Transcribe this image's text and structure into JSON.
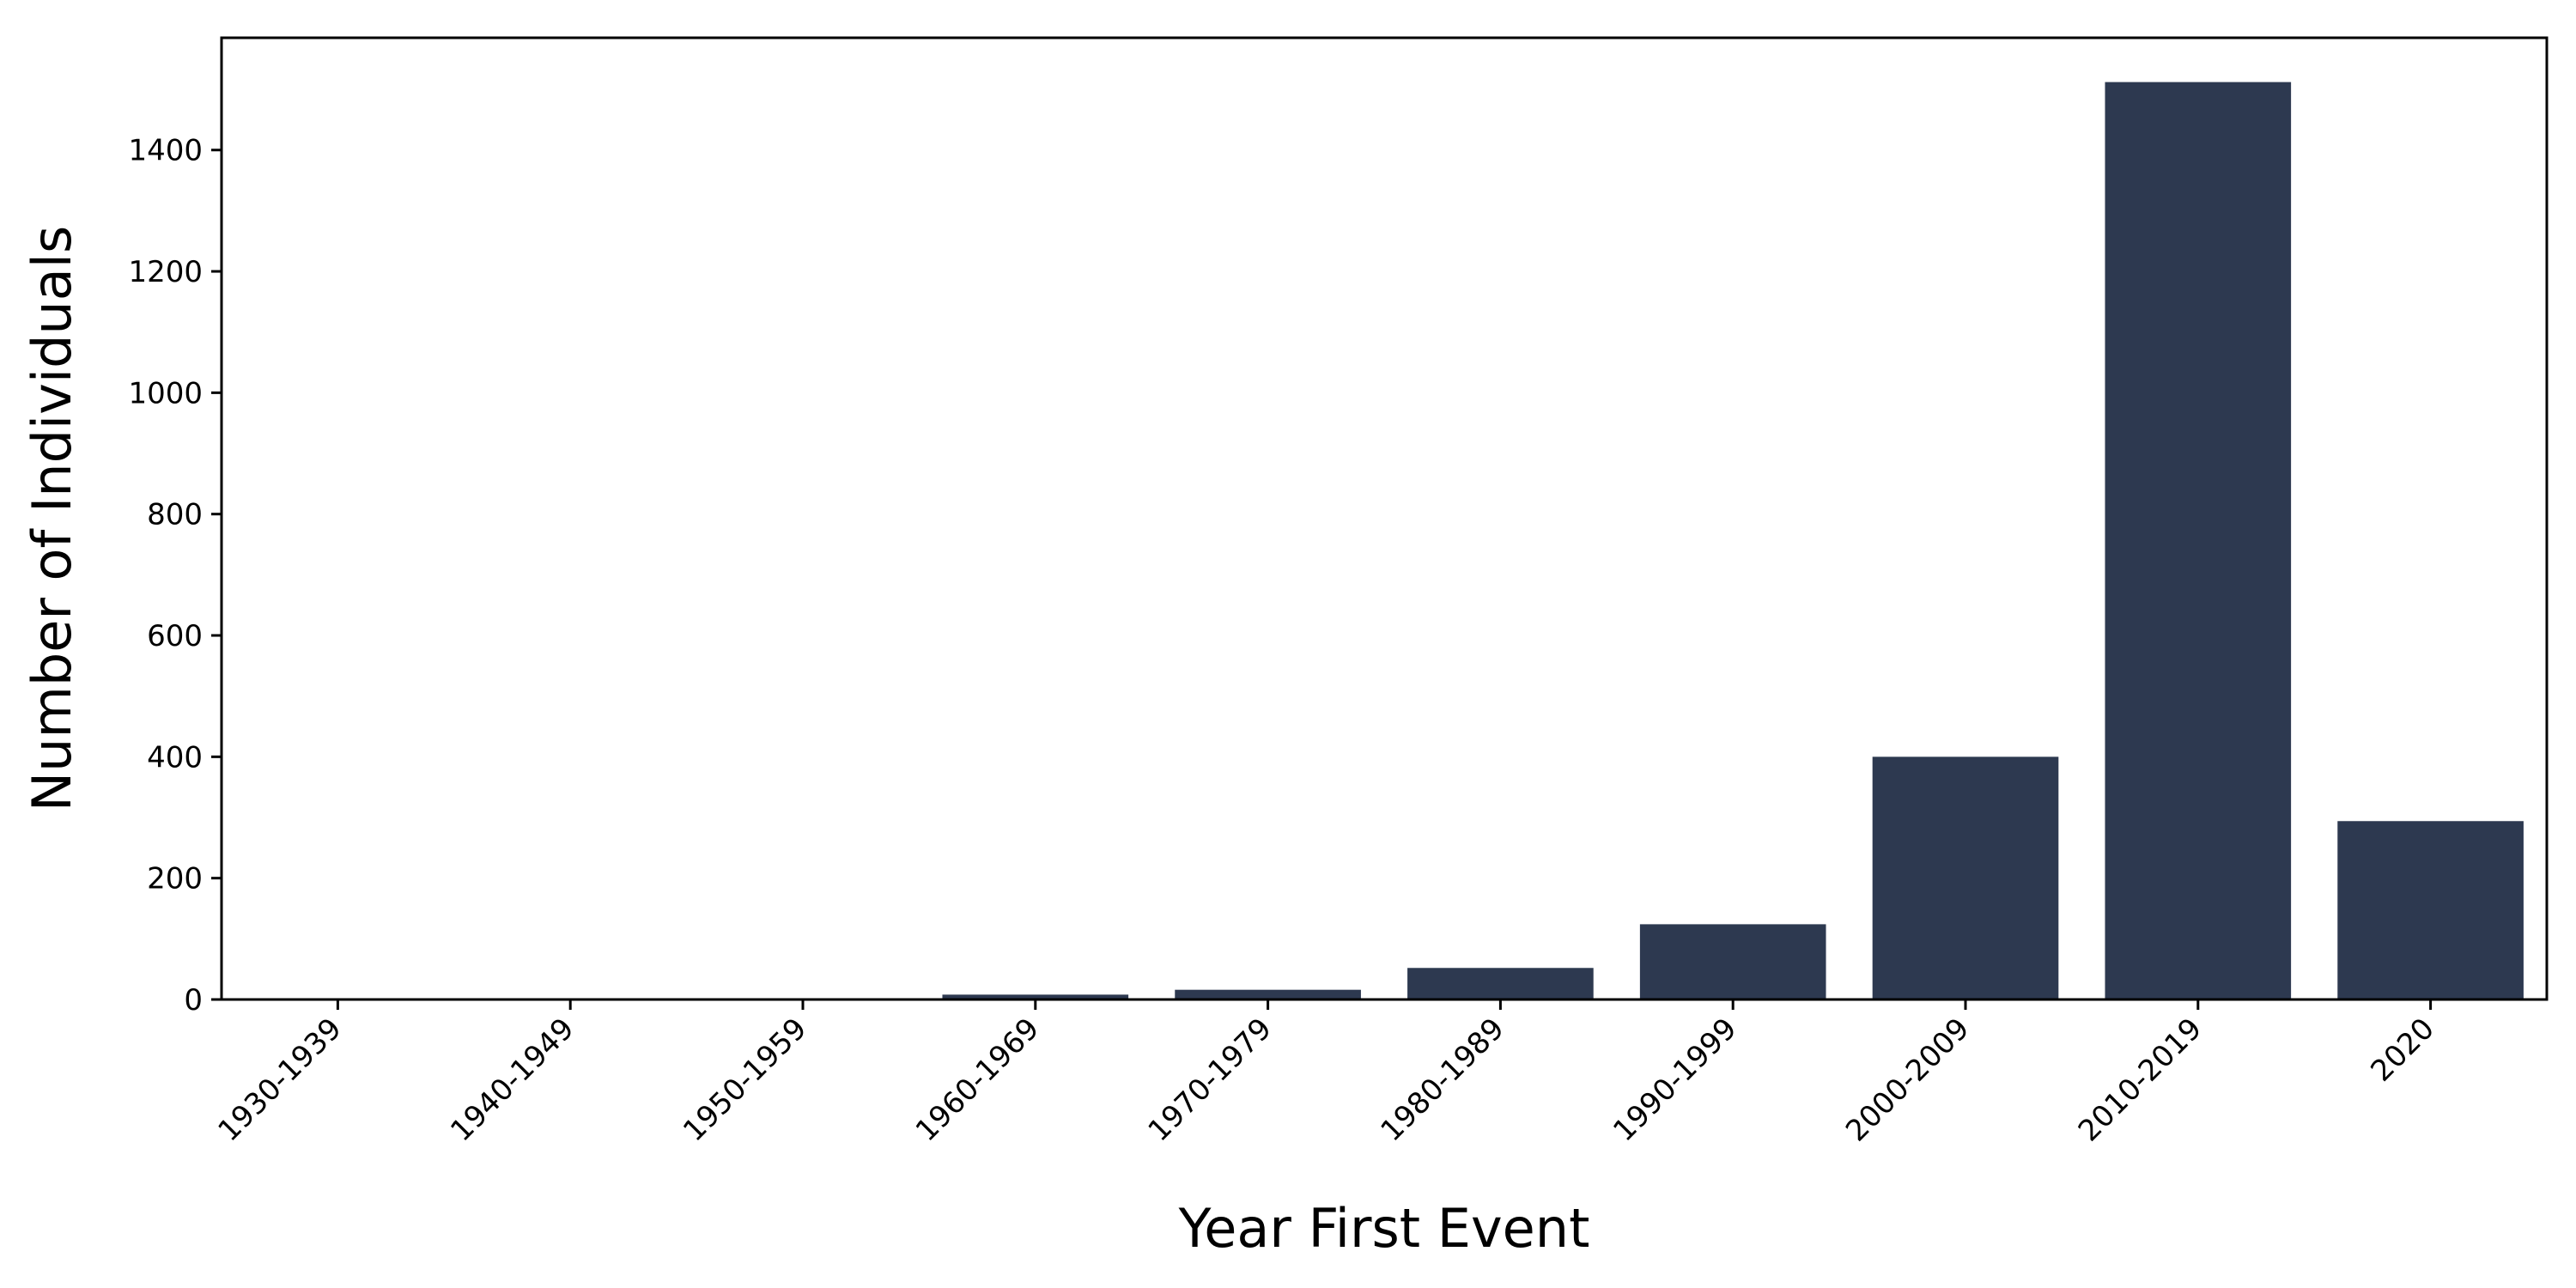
{
  "chart_data": {
    "type": "bar",
    "title": "",
    "xlabel": "Year First Event",
    "ylabel": "Number of Individuals",
    "categories": [
      "1930-1939",
      "1940-1949",
      "1950-1959",
      "1960-1969",
      "1970-1979",
      "1980-1989",
      "1990-1999",
      "2000-2009",
      "2010-2019",
      "2020"
    ],
    "values": [
      1,
      1,
      2,
      8,
      16,
      52,
      124,
      400,
      1512,
      294
    ],
    "ylim": [
      0,
      1585
    ],
    "yticks": [
      0,
      200,
      400,
      600,
      800,
      1000,
      1200,
      1400
    ],
    "grid": false,
    "legend": "none",
    "bar_color": "#2d3950",
    "axis_color": "#000000"
  }
}
